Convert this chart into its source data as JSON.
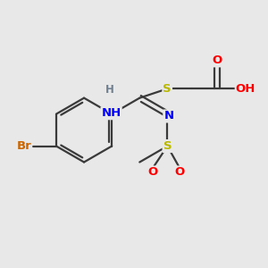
{
  "bg_color": "#e8e8e8",
  "bond_color": "#3a3a3a",
  "bond_width": 1.6,
  "atom_colors": {
    "C": "#000000",
    "H": "#708090",
    "N": "#0000ff",
    "O": "#ff0000",
    "S": "#b8b800",
    "Br": "#cc6600"
  },
  "font_size": 9.5
}
